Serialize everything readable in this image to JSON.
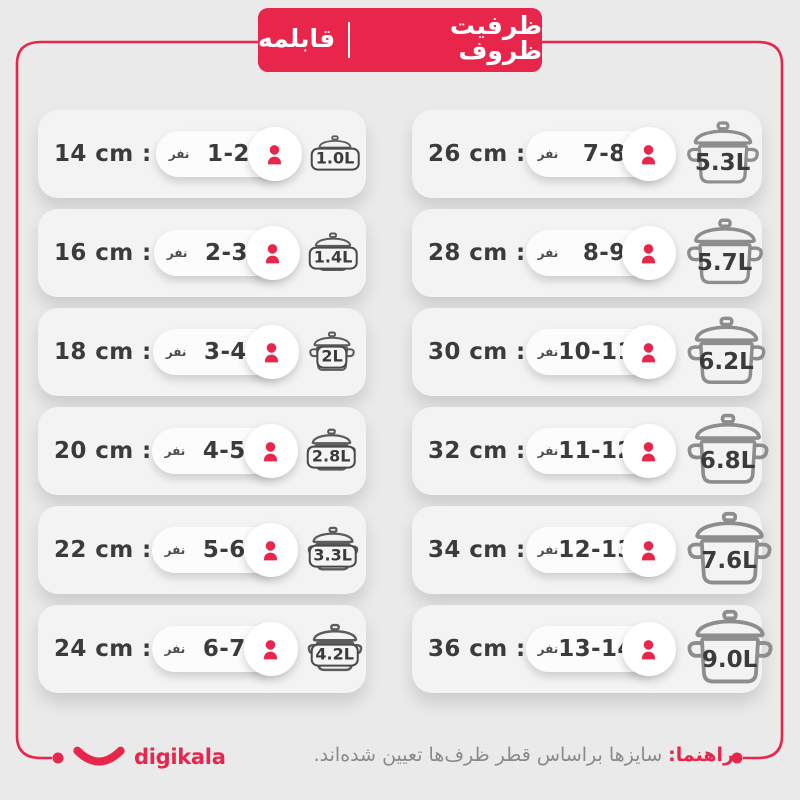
{
  "header": {
    "title_primary": "ظرفیت ظروف",
    "title_secondary": "قابلمه"
  },
  "columns": {
    "left": [
      {
        "size": "14 cm :",
        "people": "1-2",
        "unit": "نفر",
        "capacity": "1.0L"
      },
      {
        "size": "16 cm :",
        "people": "2-3",
        "unit": "نفر",
        "capacity": "1.4L"
      },
      {
        "size": "18 cm :",
        "people": "3-4",
        "unit": "نفر",
        "capacity": "2L"
      },
      {
        "size": "20 cm :",
        "people": "4-5",
        "unit": "نفر",
        "capacity": "2.8L"
      },
      {
        "size": "22 cm :",
        "people": "5-6",
        "unit": "نفر",
        "capacity": "3.3L"
      },
      {
        "size": "24 cm :",
        "people": "6-7",
        "unit": "نفر",
        "capacity": "4.2L"
      }
    ],
    "right": [
      {
        "size": "26 cm :",
        "people": "7-8",
        "unit": "نفر",
        "capacity": "5.3L"
      },
      {
        "size": "28 cm :",
        "people": "8-9",
        "unit": "نفر",
        "capacity": "5.7L"
      },
      {
        "size": "30 cm :",
        "people": "10-11",
        "unit": "نفر",
        "capacity": "6.2L"
      },
      {
        "size": "32 cm :",
        "people": "11-12",
        "unit": "نفر",
        "capacity": "6.8L"
      },
      {
        "size": "34 cm :",
        "people": "12-13",
        "unit": "نفر",
        "capacity": "7.6L"
      },
      {
        "size": "36 cm :",
        "people": "13-14",
        "unit": "نفر",
        "capacity": "9.0L"
      }
    ]
  },
  "footer": {
    "brand": "digikala",
    "note_label": "راهنما:",
    "note_text": "سایزها براساس قطر ظرف‌ها تعیین شده‌اند."
  },
  "colors": {
    "accent": "#e8254b",
    "text_dark": "#3b3b3b",
    "pot_stroke_large": "#8d8d8d",
    "pot_stroke_small": "#5c5c5c",
    "note_gray": "#8a8a8a",
    "card_bg": "#f3f3f3",
    "page_bg": "#eaeaea"
  },
  "icons": {
    "person-icon": "filled red person silhouette (head + shoulders)",
    "stockpot-icon": "outlined stock pot with domed lid, knob and two side handles",
    "digikala-smile-icon": "thick red smile arc",
    "frame-connector-dot": "filled red circle ending the frame line"
  }
}
